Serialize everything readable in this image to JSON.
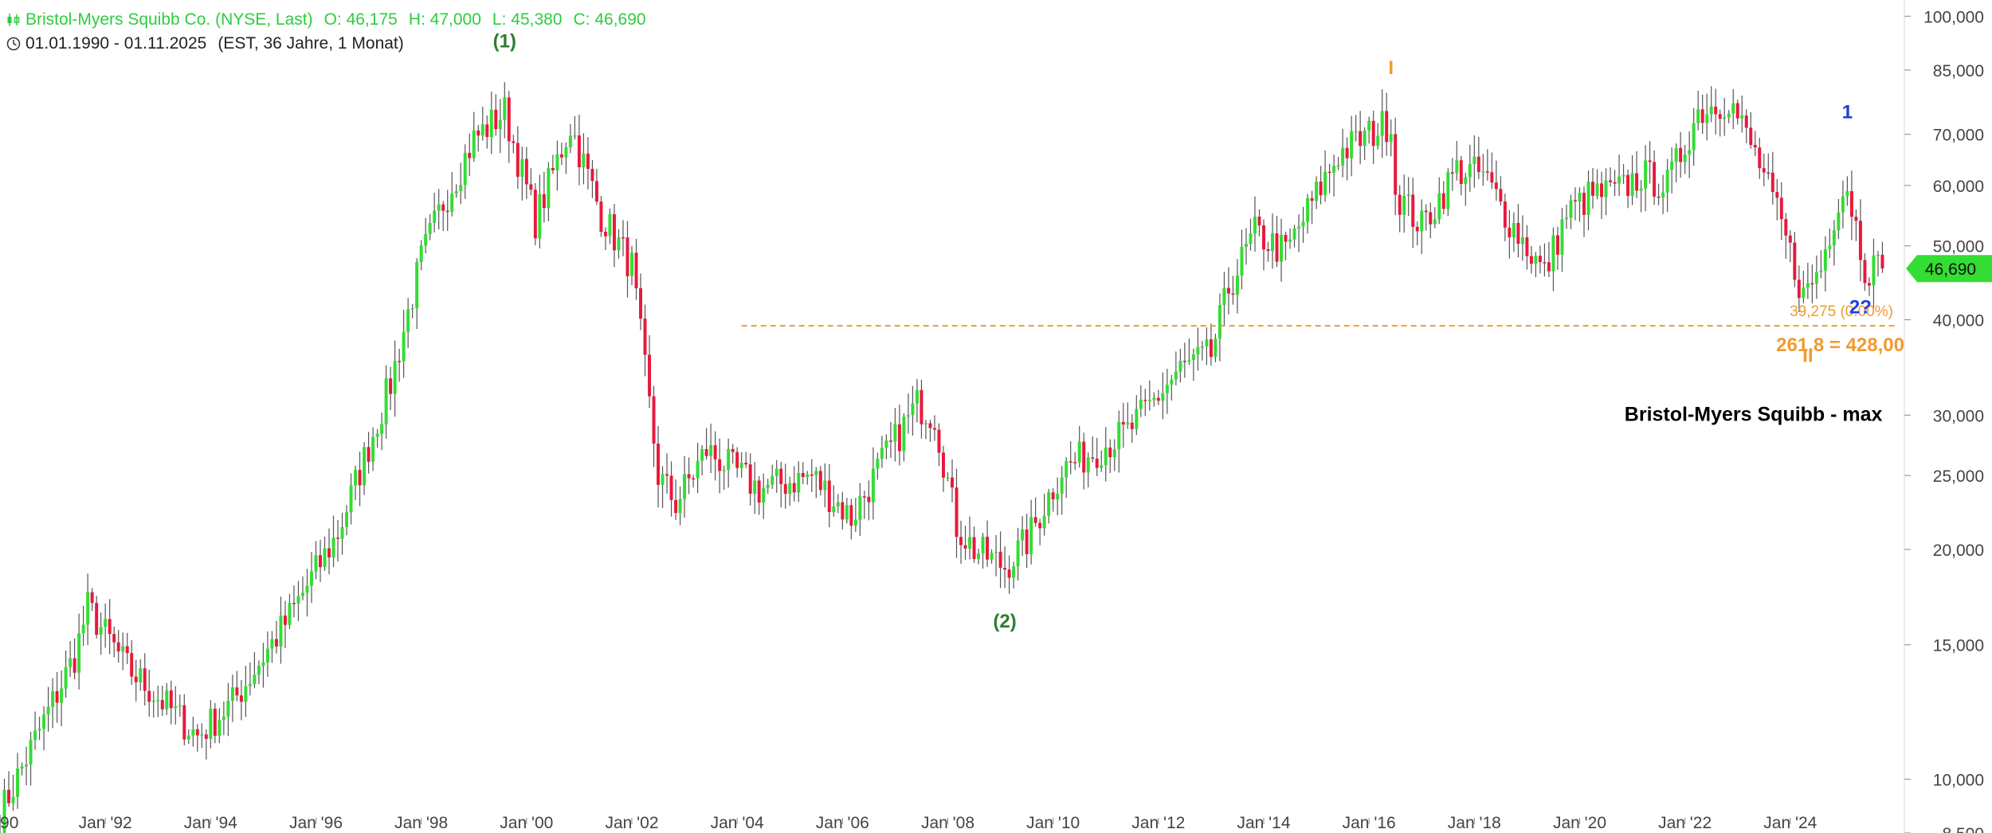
{
  "header": {
    "symbol": "Bristol-Myers Squibb Co. (NYSE, Last)",
    "open": "O: 46,175",
    "high": "H: 47,000",
    "low": "L: 45,380",
    "close": "C: 46,690",
    "date_range": "01.01.1990 - 01.11.2025",
    "timezone_period": "(EST, 36 Jahre, 1 Monat)"
  },
  "colors": {
    "up": "#33dd33",
    "down": "#e8193c",
    "wick": "#555555",
    "fib": "#f29a2e",
    "wave_primary": "#2e7d32",
    "wave_orange": "#f29a2e",
    "wave_blue": "#1a3fe0",
    "price_tag": "#33dd33"
  },
  "chart_data": {
    "type": "candlestick",
    "title": "Bristol-Myers Squibb - max",
    "scale": "log",
    "ylim": [
      8500,
      105000
    ],
    "xlim": [
      "1990-01",
      "2026-03"
    ],
    "interval": "1 month",
    "y_ticks": [
      "100,000",
      "85,000",
      "70,000",
      "60,000",
      "50,000",
      "40,000",
      "30,000",
      "25,000",
      "20,000",
      "15,000",
      "10,000",
      "8,500"
    ],
    "x_ticks": [
      "Jan '92",
      "Jan '94",
      "Jan '96",
      "Jan '98",
      "Jan '00",
      "Jan '02",
      "Jan '04",
      "Jan '06",
      "Jan '08",
      "Jan '10",
      "Jan '12",
      "Jan '14",
      "Jan '16",
      "Jan '18",
      "Jan '20",
      "Jan '22",
      "Jan '24"
    ],
    "x_tick_partial": "'90",
    "last_price": "46,690",
    "price_path": [
      [
        "1990-01",
        9.0
      ],
      [
        "1991-06",
        14.5
      ],
      [
        "1991-09",
        16.8
      ],
      [
        "1992-06",
        14.0
      ],
      [
        "1993-06",
        12.0
      ],
      [
        "1993-10",
        11.4
      ],
      [
        "1994-06",
        12.6
      ],
      [
        "1995-06",
        16.0
      ],
      [
        "1996-06",
        21.0
      ],
      [
        "1997-06",
        33.0
      ],
      [
        "1998-01",
        48.0
      ],
      [
        "1998-06",
        57.0
      ],
      [
        "1999-01",
        69.0
      ],
      [
        "1999-08",
        75.0
      ],
      [
        "2000-03",
        54.0
      ],
      [
        "2000-11",
        72.0
      ],
      [
        "2001-06",
        55.0
      ],
      [
        "2002-01",
        47.0
      ],
      [
        "2002-07",
        25.0
      ],
      [
        "2002-11",
        23.0
      ],
      [
        "2003-06",
        27.0
      ],
      [
        "2004-06",
        24.0
      ],
      [
        "2005-06",
        25.0
      ],
      [
        "2006-03",
        22.0
      ],
      [
        "2006-10",
        26.0
      ],
      [
        "2007-06",
        31.0
      ],
      [
        "2007-10",
        30.0
      ],
      [
        "2008-03",
        21.5
      ],
      [
        "2008-07",
        20.0
      ],
      [
        "2009-02",
        19.0
      ],
      [
        "2009-07",
        20.5
      ],
      [
        "2010-03",
        25.5
      ],
      [
        "2011-06",
        28.5
      ],
      [
        "2012-06",
        34.5
      ],
      [
        "2013-01",
        36.0
      ],
      [
        "2013-05",
        44.0
      ],
      [
        "2013-11",
        52.0
      ],
      [
        "2014-06",
        49.0
      ],
      [
        "2015-06",
        66.0
      ],
      [
        "2016-06",
        73.0
      ],
      [
        "2016-07",
        59.0
      ],
      [
        "2017-01",
        53.0
      ],
      [
        "2017-09",
        63.0
      ],
      [
        "2018-03",
        62.0
      ],
      [
        "2018-09",
        54.0
      ],
      [
        "2019-05",
        46.0
      ],
      [
        "2019-10",
        55.0
      ],
      [
        "2020-03",
        58.0
      ],
      [
        "2020-10",
        59.0
      ],
      [
        "2021-03",
        62.0
      ],
      [
        "2021-09",
        60.0
      ],
      [
        "2022-04",
        75.0
      ],
      [
        "2022-11",
        78.0
      ],
      [
        "2023-06",
        64.0
      ],
      [
        "2023-12",
        51.0
      ],
      [
        "2024-04",
        43.0
      ],
      [
        "2024-08",
        47.0
      ],
      [
        "2024-12",
        58.0
      ],
      [
        "2025-02",
        60.0
      ],
      [
        "2025-06",
        47.0
      ],
      [
        "2025-10",
        46.7
      ]
    ],
    "fib_line": {
      "value": 39.275,
      "label": "39,275 (0.00%)",
      "from": "2004-02"
    },
    "annotations": [
      {
        "text": "(1)",
        "x": "1999-08",
        "y": 91,
        "color": "wave_primary",
        "size": 24
      },
      {
        "text": "(2)",
        "x": "2009-02",
        "y": 15.8,
        "color": "wave_primary",
        "size": 24
      },
      {
        "text": "I",
        "x": "2016-06",
        "y": 84,
        "color": "wave_orange",
        "size": 24
      },
      {
        "text": "II",
        "x": "2024-05",
        "y": 35.2,
        "color": "wave_orange",
        "size": 24
      },
      {
        "text": "1",
        "x": "2025-02",
        "y": 73.5,
        "color": "wave_blue",
        "size": 24
      },
      {
        "text": "2?",
        "x": "2025-05",
        "y": 40.8,
        "color": "wave_blue",
        "size": 24
      },
      {
        "text": "261,8 = 428,00",
        "x": "2026-03",
        "y": 36.4,
        "color": "wave_orange",
        "size": 24
      },
      {
        "text": "Bristol-Myers Squibb - max",
        "x": "2025-10",
        "y": 29.5,
        "color": "#000000",
        "size": 25
      }
    ]
  }
}
